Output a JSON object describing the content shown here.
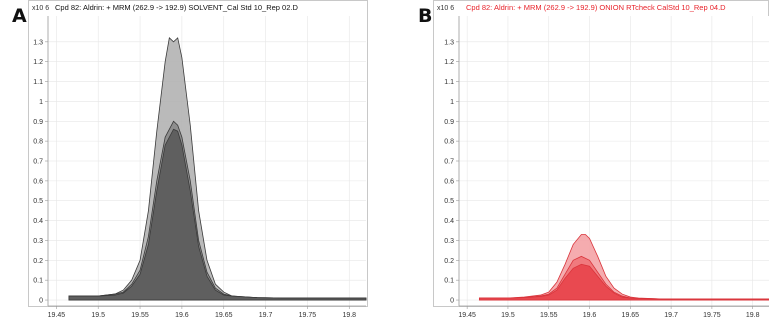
{
  "chart_data": [
    {
      "panel_label": "A",
      "type": "area",
      "title": "Cpd 82: Aldrin: + MRM (262.9 -> 192.9) SOLVENT_Cal Std 10_Rep 02.D",
      "y_scale_label": "x10 6",
      "title_color": "#111111",
      "xlim": [
        19.44,
        19.82
      ],
      "ylim": [
        -0.03,
        1.43
      ],
      "x_ticks": [
        "19.45",
        "19.5",
        "19.55",
        "19.6",
        "19.65",
        "19.7",
        "19.75",
        "19.8"
      ],
      "y_ticks": [
        "0",
        "0.1",
        "0.2",
        "0.3",
        "0.4",
        "0.5",
        "0.6",
        "0.7",
        "0.8",
        "0.9",
        "1",
        "1.1",
        "1.2",
        "1.3"
      ],
      "grid": true,
      "series": [
        {
          "color": "#b3b3b3",
          "x": [
            19.465,
            19.5,
            19.52,
            19.53,
            19.54,
            19.55,
            19.56,
            19.57,
            19.58,
            19.585,
            19.59,
            19.595,
            19.6,
            19.61,
            19.62,
            19.63,
            19.64,
            19.65,
            19.66,
            19.67,
            19.69,
            19.72,
            19.76,
            19.8,
            19.82
          ],
          "y": [
            0.02,
            0.02,
            0.03,
            0.05,
            0.1,
            0.2,
            0.45,
            0.85,
            1.2,
            1.32,
            1.3,
            1.32,
            1.22,
            0.88,
            0.45,
            0.2,
            0.08,
            0.04,
            0.02,
            0.015,
            0.012,
            0.01,
            0.01,
            0.01,
            0.01
          ]
        },
        {
          "color": "#8a8a8a",
          "x": [
            19.465,
            19.5,
            19.52,
            19.53,
            19.54,
            19.55,
            19.56,
            19.57,
            19.58,
            19.59,
            19.595,
            19.6,
            19.61,
            19.62,
            19.63,
            19.64,
            19.65,
            19.66,
            19.69,
            19.72,
            19.76,
            19.8,
            19.82
          ],
          "y": [
            0.02,
            0.02,
            0.03,
            0.04,
            0.08,
            0.15,
            0.32,
            0.6,
            0.82,
            0.9,
            0.88,
            0.82,
            0.6,
            0.3,
            0.14,
            0.06,
            0.03,
            0.02,
            0.012,
            0.01,
            0.01,
            0.01,
            0.01
          ]
        },
        {
          "color": "#5a5a5a",
          "x": [
            19.465,
            19.5,
            19.52,
            19.53,
            19.54,
            19.55,
            19.56,
            19.57,
            19.58,
            19.59,
            19.595,
            19.6,
            19.61,
            19.62,
            19.63,
            19.64,
            19.65,
            19.66,
            19.69,
            19.72,
            19.76,
            19.8,
            19.82
          ],
          "y": [
            0.02,
            0.02,
            0.025,
            0.035,
            0.07,
            0.13,
            0.28,
            0.55,
            0.78,
            0.86,
            0.85,
            0.78,
            0.55,
            0.27,
            0.12,
            0.05,
            0.025,
            0.02,
            0.012,
            0.01,
            0.01,
            0.01,
            0.01
          ]
        }
      ]
    },
    {
      "panel_label": "B",
      "type": "area",
      "title": "Cpd 82: Aldrin: + MRM (262.9 -> 192.9) ONION RTcheck CalStd 10_Rep 04.D",
      "y_scale_label": "x10 6",
      "title_color": "#e8232b",
      "xlim": [
        19.44,
        19.82
      ],
      "ylim": [
        -0.03,
        1.43
      ],
      "x_ticks": [
        "19.45",
        "19.5",
        "19.55",
        "19.6",
        "19.65",
        "19.7",
        "19.75",
        "19.8"
      ],
      "y_ticks": [
        "0",
        "0.1",
        "0.2",
        "0.3",
        "0.4",
        "0.5",
        "0.6",
        "0.7",
        "0.8",
        "0.9",
        "1",
        "1.1",
        "1.2",
        "1.3"
      ],
      "grid": true,
      "series": [
        {
          "color": "#f4a3a6",
          "x": [
            19.465,
            19.5,
            19.52,
            19.54,
            19.55,
            19.56,
            19.57,
            19.58,
            19.59,
            19.595,
            19.6,
            19.61,
            19.62,
            19.63,
            19.64,
            19.65,
            19.66,
            19.69,
            19.72,
            19.76,
            19.8,
            19.82
          ],
          "y": [
            0.01,
            0.01,
            0.015,
            0.025,
            0.04,
            0.09,
            0.18,
            0.28,
            0.33,
            0.33,
            0.31,
            0.22,
            0.12,
            0.06,
            0.03,
            0.015,
            0.01,
            0.005,
            0.005,
            0.005,
            0.005,
            0.005
          ]
        },
        {
          "color": "#ef7479",
          "x": [
            19.465,
            19.5,
            19.52,
            19.54,
            19.55,
            19.56,
            19.57,
            19.58,
            19.59,
            19.6,
            19.61,
            19.62,
            19.63,
            19.64,
            19.65,
            19.66,
            19.69,
            19.72,
            19.76,
            19.8,
            19.82
          ],
          "y": [
            0.01,
            0.01,
            0.012,
            0.02,
            0.03,
            0.06,
            0.13,
            0.2,
            0.22,
            0.2,
            0.14,
            0.08,
            0.04,
            0.02,
            0.01,
            0.008,
            0.005,
            0.005,
            0.005,
            0.005,
            0.005
          ]
        },
        {
          "color": "#e8444b",
          "x": [
            19.465,
            19.5,
            19.52,
            19.54,
            19.55,
            19.56,
            19.57,
            19.58,
            19.59,
            19.6,
            19.61,
            19.62,
            19.63,
            19.64,
            19.65,
            19.66,
            19.69,
            19.72,
            19.76,
            19.8,
            19.82
          ],
          "y": [
            0.01,
            0.01,
            0.012,
            0.018,
            0.025,
            0.05,
            0.11,
            0.16,
            0.18,
            0.17,
            0.12,
            0.07,
            0.035,
            0.015,
            0.01,
            0.008,
            0.005,
            0.005,
            0.005,
            0.005,
            0.005
          ]
        }
      ]
    }
  ]
}
